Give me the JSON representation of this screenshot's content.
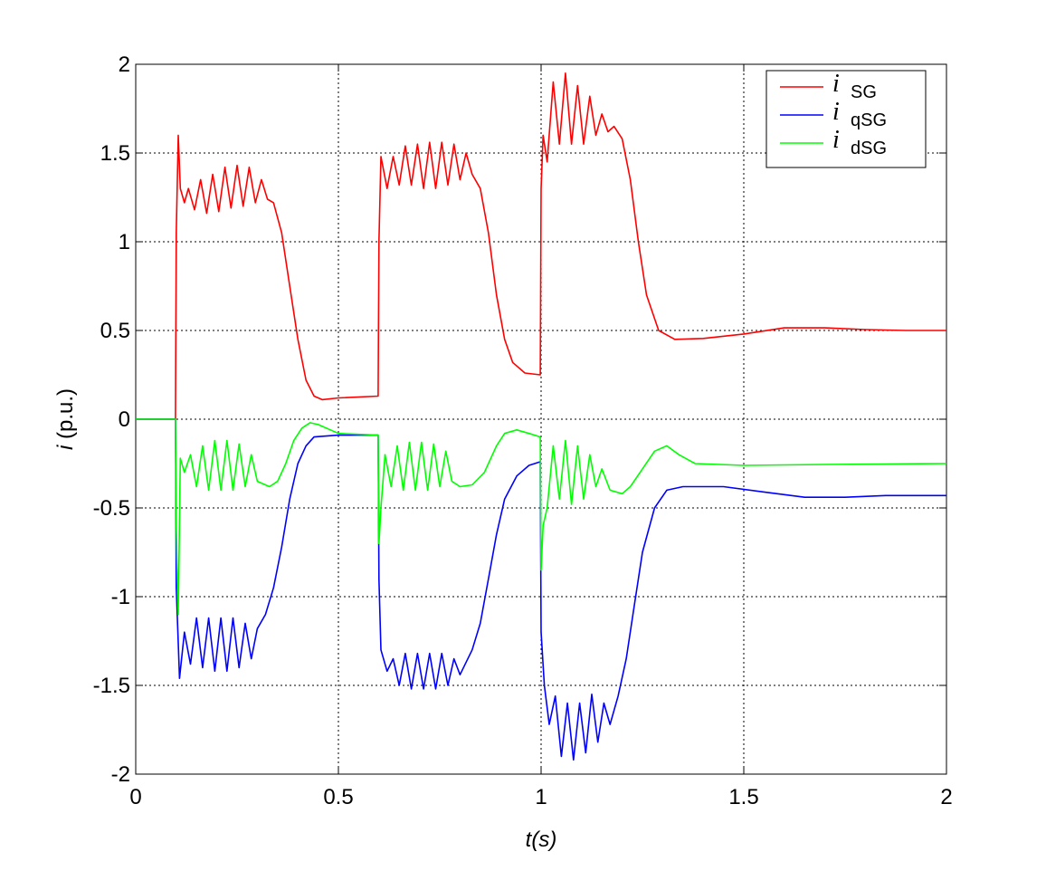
{
  "chart_data": {
    "type": "line",
    "xlabel": "t(s)",
    "ylabel_symbol": "i",
    "ylabel_unit": " (p.u.)",
    "xlim": [
      0,
      2
    ],
    "ylim": [
      -2,
      2
    ],
    "xticks": [
      0,
      0.5,
      1,
      1.5,
      2
    ],
    "xtick_labels": [
      "0",
      "0.5",
      "1",
      "1.5",
      "2"
    ],
    "yticks": [
      -2,
      -1.5,
      -1,
      -0.5,
      0,
      0.5,
      1,
      1.5,
      2
    ],
    "ytick_labels": [
      "-2",
      "-1.5",
      "-1",
      "-0.5",
      "0",
      "0.5",
      "1",
      "1.5",
      "2"
    ],
    "grid": true,
    "legend_position": "top-right",
    "series": [
      {
        "name": "i SG",
        "symbol": "i",
        "subscript": "SG",
        "color": "#ff0000",
        "points": [
          [
            0,
            0
          ],
          [
            0.098,
            0
          ],
          [
            0.1,
            1.05
          ],
          [
            0.105,
            1.6
          ],
          [
            0.11,
            1.3
          ],
          [
            0.12,
            1.22
          ],
          [
            0.13,
            1.3
          ],
          [
            0.145,
            1.18
          ],
          [
            0.16,
            1.35
          ],
          [
            0.175,
            1.16
          ],
          [
            0.19,
            1.38
          ],
          [
            0.205,
            1.17
          ],
          [
            0.22,
            1.42
          ],
          [
            0.235,
            1.19
          ],
          [
            0.25,
            1.43
          ],
          [
            0.265,
            1.2
          ],
          [
            0.28,
            1.42
          ],
          [
            0.295,
            1.22
          ],
          [
            0.31,
            1.35
          ],
          [
            0.325,
            1.24
          ],
          [
            0.34,
            1.22
          ],
          [
            0.36,
            1.05
          ],
          [
            0.38,
            0.75
          ],
          [
            0.4,
            0.45
          ],
          [
            0.42,
            0.22
          ],
          [
            0.44,
            0.13
          ],
          [
            0.46,
            0.11
          ],
          [
            0.5,
            0.12
          ],
          [
            0.598,
            0.13
          ],
          [
            0.6,
            1.0
          ],
          [
            0.605,
            1.48
          ],
          [
            0.62,
            1.3
          ],
          [
            0.635,
            1.48
          ],
          [
            0.65,
            1.32
          ],
          [
            0.665,
            1.54
          ],
          [
            0.68,
            1.32
          ],
          [
            0.695,
            1.55
          ],
          [
            0.71,
            1.3
          ],
          [
            0.725,
            1.56
          ],
          [
            0.74,
            1.3
          ],
          [
            0.755,
            1.56
          ],
          [
            0.77,
            1.32
          ],
          [
            0.785,
            1.55
          ],
          [
            0.8,
            1.35
          ],
          [
            0.815,
            1.5
          ],
          [
            0.83,
            1.38
          ],
          [
            0.85,
            1.3
          ],
          [
            0.87,
            1.05
          ],
          [
            0.89,
            0.7
          ],
          [
            0.91,
            0.45
          ],
          [
            0.93,
            0.32
          ],
          [
            0.96,
            0.26
          ],
          [
            0.998,
            0.25
          ],
          [
            1.0,
            1.3
          ],
          [
            1.005,
            1.6
          ],
          [
            1.015,
            1.45
          ],
          [
            1.03,
            1.9
          ],
          [
            1.045,
            1.55
          ],
          [
            1.06,
            1.95
          ],
          [
            1.075,
            1.55
          ],
          [
            1.09,
            1.88
          ],
          [
            1.105,
            1.55
          ],
          [
            1.12,
            1.82
          ],
          [
            1.135,
            1.6
          ],
          [
            1.15,
            1.72
          ],
          [
            1.165,
            1.62
          ],
          [
            1.18,
            1.65
          ],
          [
            1.2,
            1.58
          ],
          [
            1.22,
            1.35
          ],
          [
            1.24,
            1.0
          ],
          [
            1.26,
            0.7
          ],
          [
            1.29,
            0.5
          ],
          [
            1.33,
            0.45
          ],
          [
            1.4,
            0.455
          ],
          [
            1.5,
            0.48
          ],
          [
            1.6,
            0.515
          ],
          [
            1.7,
            0.515
          ],
          [
            1.8,
            0.505
          ],
          [
            1.9,
            0.5
          ],
          [
            2.0,
            0.5
          ]
        ]
      },
      {
        "name": "i qSG",
        "symbol": "i",
        "subscript": "qSG",
        "color": "#0000ff",
        "points": [
          [
            0,
            0
          ],
          [
            0.098,
            0
          ],
          [
            0.1,
            -0.95
          ],
          [
            0.108,
            -1.46
          ],
          [
            0.12,
            -1.2
          ],
          [
            0.135,
            -1.38
          ],
          [
            0.15,
            -1.12
          ],
          [
            0.165,
            -1.4
          ],
          [
            0.18,
            -1.12
          ],
          [
            0.195,
            -1.42
          ],
          [
            0.21,
            -1.12
          ],
          [
            0.225,
            -1.42
          ],
          [
            0.24,
            -1.12
          ],
          [
            0.255,
            -1.4
          ],
          [
            0.27,
            -1.15
          ],
          [
            0.285,
            -1.35
          ],
          [
            0.3,
            -1.18
          ],
          [
            0.32,
            -1.1
          ],
          [
            0.34,
            -0.95
          ],
          [
            0.36,
            -0.72
          ],
          [
            0.38,
            -0.45
          ],
          [
            0.4,
            -0.25
          ],
          [
            0.42,
            -0.15
          ],
          [
            0.44,
            -0.1
          ],
          [
            0.5,
            -0.09
          ],
          [
            0.598,
            -0.09
          ],
          [
            0.6,
            -0.9
          ],
          [
            0.605,
            -1.3
          ],
          [
            0.62,
            -1.42
          ],
          [
            0.635,
            -1.35
          ],
          [
            0.65,
            -1.5
          ],
          [
            0.665,
            -1.32
          ],
          [
            0.68,
            -1.52
          ],
          [
            0.695,
            -1.32
          ],
          [
            0.71,
            -1.52
          ],
          [
            0.725,
            -1.32
          ],
          [
            0.74,
            -1.52
          ],
          [
            0.755,
            -1.32
          ],
          [
            0.77,
            -1.5
          ],
          [
            0.785,
            -1.35
          ],
          [
            0.8,
            -1.44
          ],
          [
            0.83,
            -1.3
          ],
          [
            0.85,
            -1.15
          ],
          [
            0.87,
            -0.9
          ],
          [
            0.89,
            -0.65
          ],
          [
            0.91,
            -0.45
          ],
          [
            0.94,
            -0.32
          ],
          [
            0.97,
            -0.26
          ],
          [
            0.998,
            -0.24
          ],
          [
            1.0,
            -1.2
          ],
          [
            1.008,
            -1.5
          ],
          [
            1.02,
            -1.72
          ],
          [
            1.035,
            -1.56
          ],
          [
            1.05,
            -1.9
          ],
          [
            1.065,
            -1.6
          ],
          [
            1.08,
            -1.92
          ],
          [
            1.095,
            -1.6
          ],
          [
            1.11,
            -1.88
          ],
          [
            1.125,
            -1.55
          ],
          [
            1.14,
            -1.82
          ],
          [
            1.155,
            -1.6
          ],
          [
            1.17,
            -1.72
          ],
          [
            1.19,
            -1.56
          ],
          [
            1.21,
            -1.35
          ],
          [
            1.23,
            -1.05
          ],
          [
            1.25,
            -0.75
          ],
          [
            1.28,
            -0.5
          ],
          [
            1.31,
            -0.4
          ],
          [
            1.35,
            -0.38
          ],
          [
            1.45,
            -0.38
          ],
          [
            1.55,
            -0.41
          ],
          [
            1.65,
            -0.44
          ],
          [
            1.75,
            -0.44
          ],
          [
            1.85,
            -0.43
          ],
          [
            2.0,
            -0.43
          ]
        ]
      },
      {
        "name": "i dSG",
        "symbol": "i",
        "subscript": "dSG",
        "color": "#00ff00",
        "points": [
          [
            0,
            0
          ],
          [
            0.098,
            0
          ],
          [
            0.1,
            -0.6
          ],
          [
            0.105,
            -1.1
          ],
          [
            0.11,
            -0.22
          ],
          [
            0.12,
            -0.3
          ],
          [
            0.135,
            -0.2
          ],
          [
            0.15,
            -0.38
          ],
          [
            0.165,
            -0.15
          ],
          [
            0.18,
            -0.4
          ],
          [
            0.195,
            -0.12
          ],
          [
            0.21,
            -0.4
          ],
          [
            0.225,
            -0.12
          ],
          [
            0.24,
            -0.4
          ],
          [
            0.255,
            -0.14
          ],
          [
            0.27,
            -0.38
          ],
          [
            0.285,
            -0.2
          ],
          [
            0.3,
            -0.35
          ],
          [
            0.33,
            -0.38
          ],
          [
            0.35,
            -0.35
          ],
          [
            0.37,
            -0.25
          ],
          [
            0.39,
            -0.12
          ],
          [
            0.41,
            -0.05
          ],
          [
            0.43,
            -0.02
          ],
          [
            0.45,
            -0.03
          ],
          [
            0.5,
            -0.08
          ],
          [
            0.598,
            -0.09
          ],
          [
            0.6,
            -0.7
          ],
          [
            0.605,
            -0.5
          ],
          [
            0.615,
            -0.2
          ],
          [
            0.63,
            -0.38
          ],
          [
            0.645,
            -0.15
          ],
          [
            0.66,
            -0.4
          ],
          [
            0.675,
            -0.13
          ],
          [
            0.69,
            -0.4
          ],
          [
            0.705,
            -0.13
          ],
          [
            0.72,
            -0.4
          ],
          [
            0.735,
            -0.14
          ],
          [
            0.75,
            -0.38
          ],
          [
            0.765,
            -0.18
          ],
          [
            0.78,
            -0.35
          ],
          [
            0.8,
            -0.38
          ],
          [
            0.83,
            -0.37
          ],
          [
            0.86,
            -0.3
          ],
          [
            0.89,
            -0.15
          ],
          [
            0.91,
            -0.08
          ],
          [
            0.94,
            -0.06
          ],
          [
            0.97,
            -0.08
          ],
          [
            0.998,
            -0.1
          ],
          [
            1.0,
            -0.85
          ],
          [
            1.005,
            -0.6
          ],
          [
            1.015,
            -0.5
          ],
          [
            1.03,
            -0.15
          ],
          [
            1.045,
            -0.45
          ],
          [
            1.06,
            -0.12
          ],
          [
            1.075,
            -0.48
          ],
          [
            1.09,
            -0.15
          ],
          [
            1.105,
            -0.45
          ],
          [
            1.12,
            -0.2
          ],
          [
            1.135,
            -0.38
          ],
          [
            1.15,
            -0.28
          ],
          [
            1.17,
            -0.4
          ],
          [
            1.2,
            -0.42
          ],
          [
            1.22,
            -0.38
          ],
          [
            1.25,
            -0.28
          ],
          [
            1.28,
            -0.18
          ],
          [
            1.31,
            -0.15
          ],
          [
            1.34,
            -0.2
          ],
          [
            1.38,
            -0.25
          ],
          [
            1.5,
            -0.26
          ],
          [
            1.7,
            -0.255
          ],
          [
            2.0,
            -0.25
          ]
        ]
      }
    ]
  }
}
